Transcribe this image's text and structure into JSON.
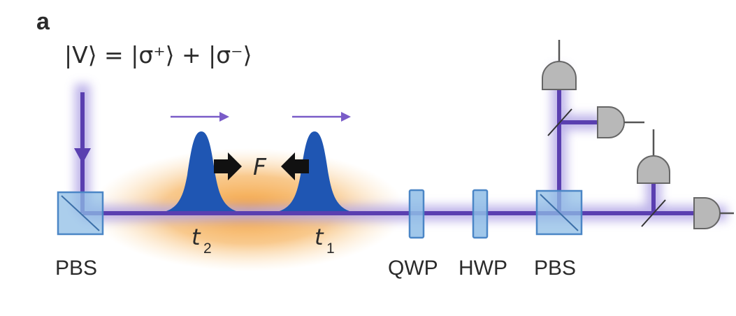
{
  "panel_label": "a",
  "state_equation": "|V⟩ = |σ⁺⟩ + |σ⁻⟩",
  "force_label": "F",
  "time_labels": {
    "t2_base": "t",
    "t2_sub": "2",
    "t1_base": "t",
    "t1_sub": "1"
  },
  "components": {
    "pbs_left": "PBS",
    "qwp": "QWP",
    "hwp": "HWP",
    "pbs_right": "PBS"
  },
  "colors": {
    "beam": "#5a3fb0",
    "beam_glow": "#b3a7e6",
    "pulse": "#1f56b3",
    "medium": "#f5a64a",
    "optic": "#8fbde6",
    "optic_edge": "#4b86c6",
    "detector": "#b8b8b8"
  },
  "icons": [
    "arrow-right-icon",
    "force-arrow-right-icon",
    "force-arrow-left-icon",
    "detector-icon",
    "beam-splitter-icon"
  ]
}
